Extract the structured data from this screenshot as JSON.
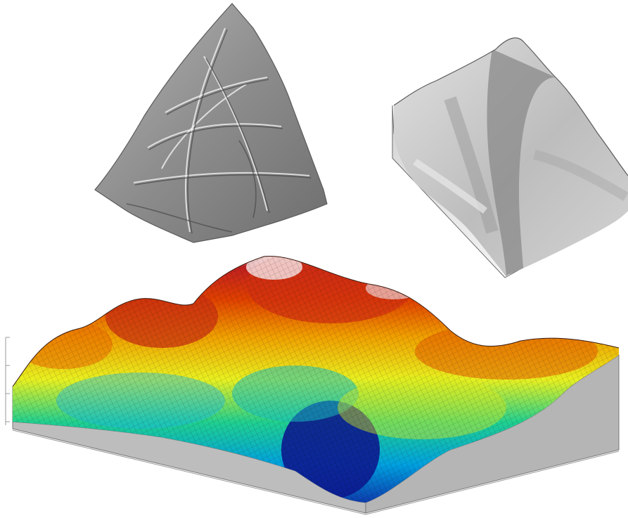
{
  "panels": [
    {
      "id": "etched-fragment",
      "kind": "shaded-relief"
    },
    {
      "id": "grayscale-terrain",
      "kind": "grayscale-3d-surface"
    },
    {
      "id": "color-terrain",
      "kind": "colored-3d-surface"
    }
  ],
  "colors": {
    "background": "#ffffff",
    "relief_gray": "#8c8c8c",
    "base_gray": "#b9b9b9",
    "ramp": [
      "#1020a0",
      "#00a0e0",
      "#20d090",
      "#e8f020",
      "#f0a000",
      "#e04000",
      "#c02020",
      "#f0d8d8"
    ]
  }
}
